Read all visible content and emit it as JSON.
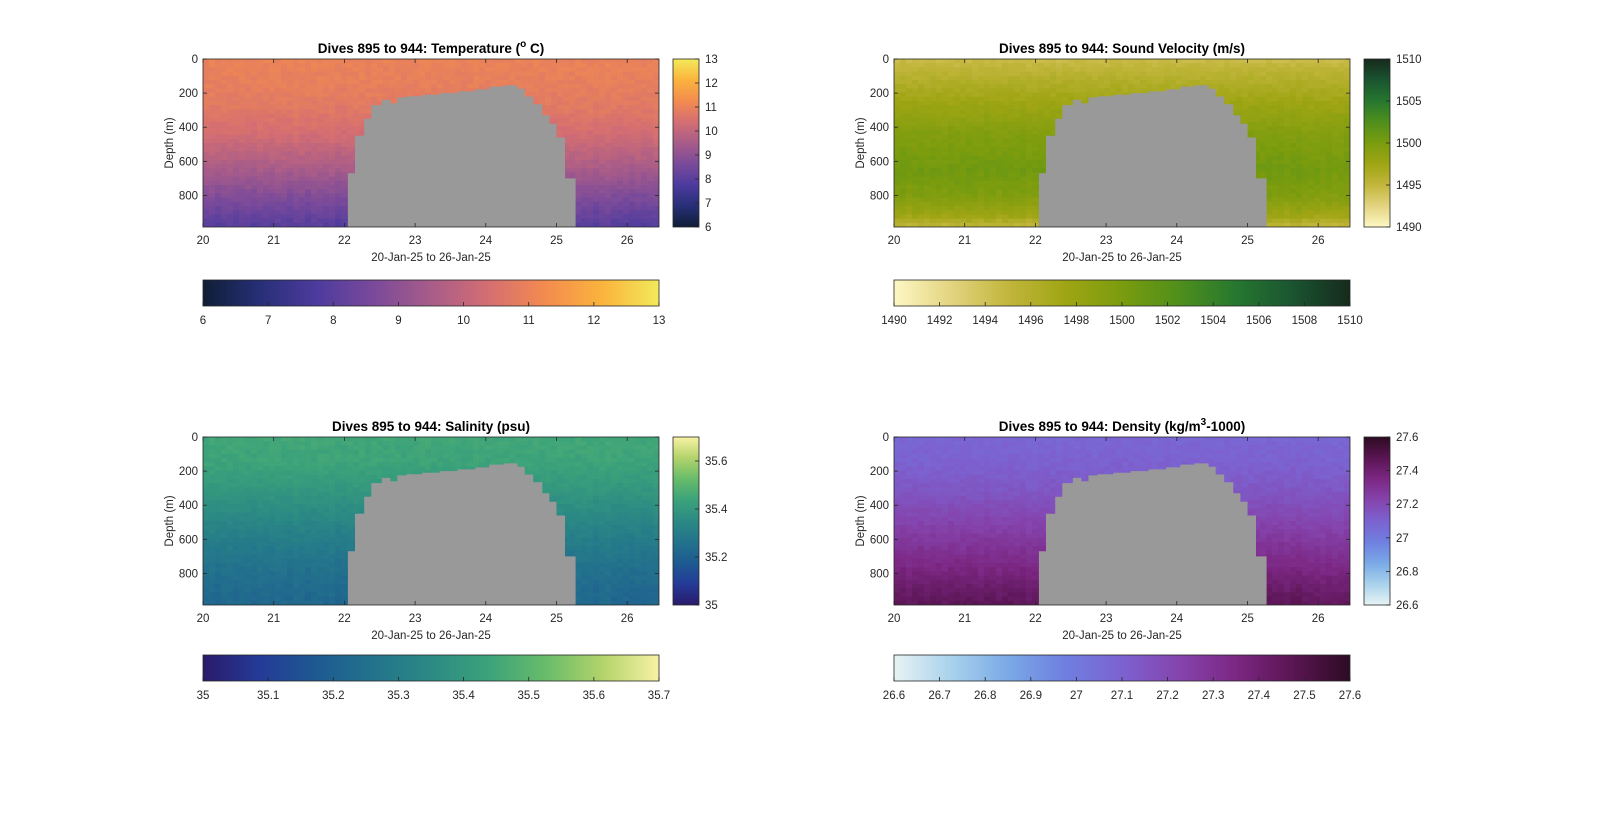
{
  "chart_data": [
    {
      "id": "temperature",
      "type": "heatmap",
      "title_parts": [
        "Dives 895 to 944: Temperature (",
        "o",
        " C)"
      ],
      "xlabel": "20-Jan-25 to 26-Jan-25",
      "ylabel": "Depth (m)",
      "x_ticks": [
        20,
        21,
        22,
        23,
        24,
        25,
        26
      ],
      "y_ticks": [
        0,
        200,
        400,
        600,
        800
      ],
      "xlim": [
        20,
        26.45
      ],
      "ylim": [
        0,
        985
      ],
      "clim": [
        6,
        13
      ],
      "cbar_ticks_vertical": [
        6,
        7,
        8,
        9,
        10,
        11,
        12,
        13
      ],
      "cbar_ticks_horizontal": [
        6,
        7,
        8,
        9,
        10,
        11,
        12,
        13
      ],
      "colormap": [
        "#0f1e36",
        "#272f77",
        "#4d3b9e",
        "#7a4a9a",
        "#a85c89",
        "#d46e72",
        "#f38b4f",
        "#fbb33d",
        "#f2ea5a"
      ],
      "profile": [
        {
          "depth": 0,
          "value": 11.0
        },
        {
          "depth": 150,
          "value": 10.9
        },
        {
          "depth": 300,
          "value": 10.7
        },
        {
          "depth": 450,
          "value": 10.3
        },
        {
          "depth": 600,
          "value": 9.7
        },
        {
          "depth": 750,
          "value": 9.0
        },
        {
          "depth": 900,
          "value": 8.3
        },
        {
          "depth": 985,
          "value": 7.9
        }
      ]
    },
    {
      "id": "sound-velocity",
      "type": "heatmap",
      "title_parts": [
        "Dives 895 to 944: Sound Velocity (m/s)"
      ],
      "xlabel": "20-Jan-25 to 26-Jan-25",
      "ylabel": "Depth (m)",
      "x_ticks": [
        20,
        21,
        22,
        23,
        24,
        25,
        26
      ],
      "y_ticks": [
        0,
        200,
        400,
        600,
        800
      ],
      "xlim": [
        20,
        26.45
      ],
      "ylim": [
        0,
        985
      ],
      "clim": [
        1490,
        1510
      ],
      "cbar_ticks_vertical": [
        1490,
        1495,
        1500,
        1505,
        1510
      ],
      "cbar_ticks_horizontal": [
        1490,
        1492,
        1494,
        1496,
        1498,
        1500,
        1502,
        1504,
        1506,
        1508,
        1510
      ],
      "colormap": [
        "#fdf7c4",
        "#e3d480",
        "#c2b63c",
        "#9fa514",
        "#7a9c0e",
        "#4f8f1c",
        "#26772f",
        "#1a5430",
        "#162a1c"
      ],
      "profile": [
        {
          "depth": 0,
          "value": 1494.5
        },
        {
          "depth": 100,
          "value": 1495.8
        },
        {
          "depth": 250,
          "value": 1497.5
        },
        {
          "depth": 450,
          "value": 1499.5
        },
        {
          "depth": 650,
          "value": 1500.5
        },
        {
          "depth": 800,
          "value": 1499.6
        },
        {
          "depth": 920,
          "value": 1497.5
        },
        {
          "depth": 985,
          "value": 1495.0
        }
      ]
    },
    {
      "id": "salinity",
      "type": "heatmap",
      "title_parts": [
        "Dives 895 to 944: Salinity (psu)"
      ],
      "xlabel": "20-Jan-25 to 26-Jan-25",
      "ylabel": "Depth (m)",
      "x_ticks": [
        20,
        21,
        22,
        23,
        24,
        25,
        26
      ],
      "y_ticks": [
        0,
        200,
        400,
        600,
        800
      ],
      "xlim": [
        20,
        26.45
      ],
      "ylim": [
        0,
        985
      ],
      "clim": [
        35,
        35.7
      ],
      "cbar_ticks_vertical": [
        35,
        35.2,
        35.4,
        35.6
      ],
      "cbar_ticks_horizontal": [
        35,
        35.1,
        35.2,
        35.3,
        35.4,
        35.5,
        35.6,
        35.7
      ],
      "colormap": [
        "#2a1a6b",
        "#243b97",
        "#1d5a91",
        "#23738c",
        "#2b8a84",
        "#3ba27a",
        "#67bc6a",
        "#b2d36b",
        "#f8f2a3"
      ],
      "profile": [
        {
          "depth": 0,
          "value": 35.45
        },
        {
          "depth": 150,
          "value": 35.44
        },
        {
          "depth": 300,
          "value": 35.4
        },
        {
          "depth": 450,
          "value": 35.35
        },
        {
          "depth": 600,
          "value": 35.3
        },
        {
          "depth": 750,
          "value": 35.26
        },
        {
          "depth": 900,
          "value": 35.23
        },
        {
          "depth": 985,
          "value": 35.22
        }
      ]
    },
    {
      "id": "density",
      "type": "heatmap",
      "title_parts": [
        "Dives 895 to 944: Density (kg/m",
        "3",
        "-1000)"
      ],
      "xlabel": "20-Jan-25 to 26-Jan-25",
      "ylabel": "Depth (m)",
      "x_ticks": [
        20,
        21,
        22,
        23,
        24,
        25,
        26
      ],
      "y_ticks": [
        0,
        200,
        400,
        600,
        800
      ],
      "xlim": [
        20,
        26.45
      ],
      "ylim": [
        0,
        985
      ],
      "clim": [
        26.6,
        27.6
      ],
      "cbar_ticks_vertical": [
        26.6,
        26.8,
        27,
        27.2,
        27.4,
        27.6
      ],
      "cbar_ticks_horizontal": [
        26.6,
        26.7,
        26.8,
        26.9,
        27,
        27.1,
        27.2,
        27.3,
        27.4,
        27.5,
        27.6
      ],
      "colormap": [
        "#e8f3f4",
        "#a9d2ec",
        "#7aa9e6",
        "#6f7fe0",
        "#7c62d0",
        "#8544ad",
        "#7c2783",
        "#5a1553",
        "#2d0b22"
      ],
      "profile": [
        {
          "depth": 0,
          "value": 27.08
        },
        {
          "depth": 150,
          "value": 27.1
        },
        {
          "depth": 300,
          "value": 27.14
        },
        {
          "depth": 450,
          "value": 27.2
        },
        {
          "depth": 600,
          "value": 27.27
        },
        {
          "depth": 750,
          "value": 27.34
        },
        {
          "depth": 900,
          "value": 27.42
        },
        {
          "depth": 985,
          "value": 27.46
        }
      ]
    }
  ],
  "no_data": {
    "color": "#999999",
    "boundary": [
      {
        "x": 22.05,
        "depth": 985
      },
      {
        "x": 22.05,
        "depth": 670
      },
      {
        "x": 22.15,
        "depth": 670
      },
      {
        "x": 22.15,
        "depth": 450
      },
      {
        "x": 22.28,
        "depth": 450
      },
      {
        "x": 22.28,
        "depth": 350
      },
      {
        "x": 22.38,
        "depth": 350
      },
      {
        "x": 22.38,
        "depth": 270
      },
      {
        "x": 22.53,
        "depth": 270
      },
      {
        "x": 22.53,
        "depth": 240
      },
      {
        "x": 22.65,
        "depth": 240
      },
      {
        "x": 22.65,
        "depth": 260
      },
      {
        "x": 22.75,
        "depth": 260
      },
      {
        "x": 22.75,
        "depth": 225
      },
      {
        "x": 22.88,
        "depth": 225
      },
      {
        "x": 22.88,
        "depth": 218
      },
      {
        "x": 23.1,
        "depth": 218
      },
      {
        "x": 23.1,
        "depth": 210
      },
      {
        "x": 23.35,
        "depth": 210
      },
      {
        "x": 23.35,
        "depth": 200
      },
      {
        "x": 23.6,
        "depth": 200
      },
      {
        "x": 23.6,
        "depth": 190
      },
      {
        "x": 23.85,
        "depth": 190
      },
      {
        "x": 23.85,
        "depth": 178
      },
      {
        "x": 24.05,
        "depth": 178
      },
      {
        "x": 24.05,
        "depth": 162
      },
      {
        "x": 24.25,
        "depth": 162
      },
      {
        "x": 24.25,
        "depth": 155
      },
      {
        "x": 24.45,
        "depth": 155
      },
      {
        "x": 24.45,
        "depth": 175
      },
      {
        "x": 24.55,
        "depth": 175
      },
      {
        "x": 24.55,
        "depth": 220
      },
      {
        "x": 24.67,
        "depth": 220
      },
      {
        "x": 24.67,
        "depth": 265
      },
      {
        "x": 24.8,
        "depth": 265
      },
      {
        "x": 24.8,
        "depth": 330
      },
      {
        "x": 24.9,
        "depth": 330
      },
      {
        "x": 24.9,
        "depth": 380
      },
      {
        "x": 25.0,
        "depth": 380
      },
      {
        "x": 25.0,
        "depth": 460
      },
      {
        "x": 25.12,
        "depth": 460
      },
      {
        "x": 25.12,
        "depth": 700
      },
      {
        "x": 25.27,
        "depth": 700
      },
      {
        "x": 25.27,
        "depth": 985
      }
    ]
  }
}
